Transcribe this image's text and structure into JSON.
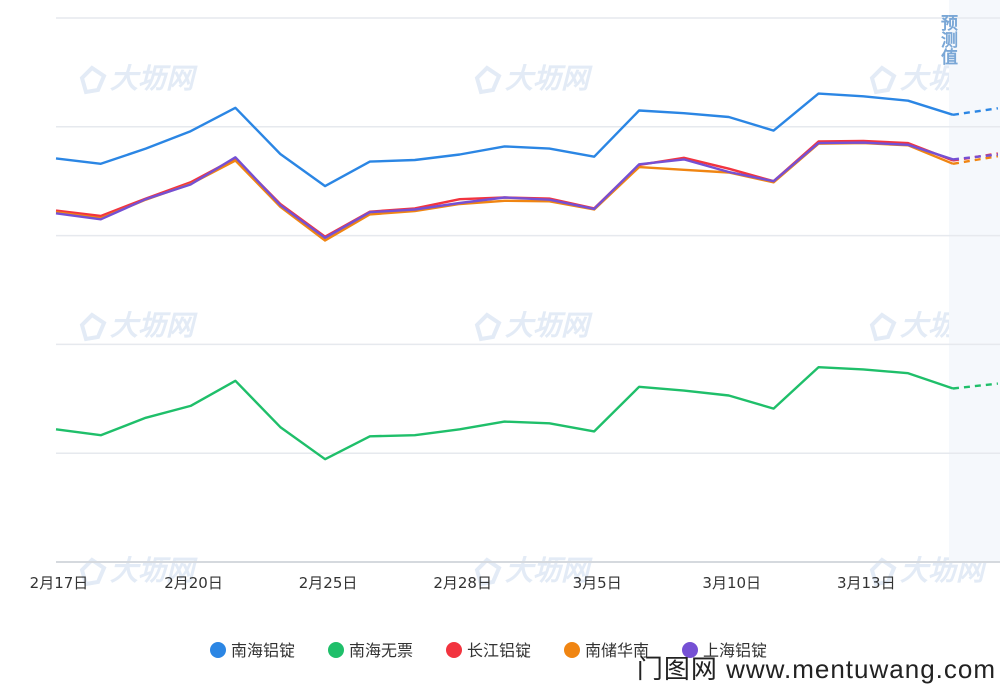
{
  "chart_data": {
    "type": "line",
    "title": "",
    "xlabel": "",
    "ylabel": "",
    "ylim": [
      0,
      100
    ],
    "grid": true,
    "legend_position": "bottom-center",
    "n_points": 22,
    "x_tick_labels": [
      {
        "index": 0,
        "label": "2月17日"
      },
      {
        "index": 3,
        "label": "2月20日"
      },
      {
        "index": 6,
        "label": "2月25日"
      },
      {
        "index": 9,
        "label": "2月28日"
      },
      {
        "index": 12,
        "label": "3月5日"
      },
      {
        "index": 15,
        "label": "3月10日"
      },
      {
        "index": 18,
        "label": "3月13日"
      }
    ],
    "forecast_label": "预测值",
    "forecast_start_index": 20,
    "series": [
      {
        "name": "南海铝锭",
        "color": "#2b86e4",
        "values": [
          74.2,
          73.2,
          76.0,
          79.2,
          83.5,
          75.0,
          69.1,
          73.6,
          73.9,
          74.9,
          76.4,
          76.0,
          74.5,
          83.0,
          82.5,
          81.8,
          79.3,
          86.1,
          85.6,
          84.8,
          82.2,
          83.4
        ]
      },
      {
        "name": "南海无票",
        "color": "#1fbf6a",
        "values": [
          24.4,
          23.3,
          26.5,
          28.7,
          33.3,
          24.8,
          18.9,
          23.1,
          23.3,
          24.4,
          25.8,
          25.5,
          24.0,
          32.2,
          31.5,
          30.6,
          28.2,
          35.8,
          35.4,
          34.7,
          31.9,
          32.8
        ]
      },
      {
        "name": "长江铝锭",
        "color": "#f2343f",
        "values": [
          64.6,
          63.6,
          66.8,
          69.8,
          74.2,
          65.8,
          59.8,
          64.4,
          65.0,
          66.7,
          67.0,
          66.8,
          65.0,
          73.0,
          74.3,
          72.3,
          70.0,
          77.3,
          77.4,
          77.0,
          73.8,
          75.1
        ]
      },
      {
        "name": "南储华南",
        "color": "#f08512",
        "values": [
          64.3,
          63.2,
          66.6,
          69.5,
          73.8,
          65.3,
          59.1,
          63.9,
          64.5,
          65.8,
          66.4,
          66.3,
          64.8,
          72.6,
          72.1,
          71.6,
          69.8,
          76.9,
          77.0,
          76.6,
          73.2,
          74.6
        ]
      },
      {
        "name": "上海铝锭",
        "color": "#7550d4",
        "values": [
          64.1,
          63.0,
          66.7,
          69.4,
          74.4,
          65.6,
          59.6,
          64.3,
          64.8,
          66.0,
          67.0,
          66.6,
          64.9,
          73.1,
          74.0,
          71.7,
          70.0,
          77.0,
          77.1,
          76.7,
          74.0,
          74.9
        ]
      }
    ]
  },
  "watermark": {
    "text": "大坜网"
  },
  "footer": {
    "site": "门图网 www.mentuwang.com"
  }
}
